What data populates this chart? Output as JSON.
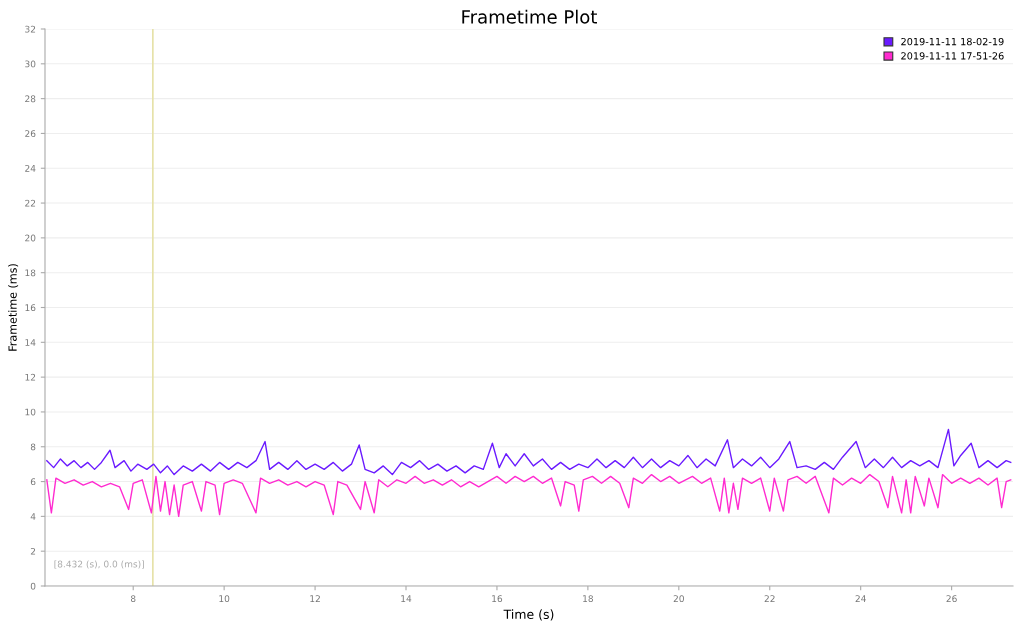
{
  "chart_data": {
    "type": "line",
    "title": "Frametime Plot",
    "xlabel": "Time (s)",
    "ylabel": "Frametime (ms)",
    "xlim": [
      6.06,
      27.35
    ],
    "xticks": [
      8,
      10,
      12,
      14,
      16,
      18,
      20,
      22,
      24,
      26
    ],
    "ylim": [
      0,
      32
    ],
    "yticks": [
      0,
      2,
      4,
      6,
      8,
      10,
      12,
      14,
      16,
      18,
      20,
      22,
      24,
      26,
      28,
      30,
      32
    ],
    "grid": "y",
    "legend": "top right",
    "marker": "none",
    "line_style": "solid",
    "ref_lines": [
      {
        "axis": "x",
        "value": 8.432,
        "color": "#e6e2a8"
      }
    ],
    "annotations": [
      "[8.432 (s), 0.0 (ms)]"
    ],
    "series": [
      {
        "name": "2019-11-11 18-02-19",
        "color": "#6a1aff",
        "x": [
          6.1,
          6.25,
          6.4,
          6.55,
          6.7,
          6.85,
          7.0,
          7.15,
          7.3,
          7.49,
          7.6,
          7.8,
          7.95,
          8.1,
          8.3,
          8.45,
          8.6,
          8.75,
          8.9,
          9.1,
          9.3,
          9.5,
          9.7,
          9.9,
          10.1,
          10.3,
          10.5,
          10.7,
          10.9,
          11.0,
          11.2,
          11.4,
          11.6,
          11.8,
          12.0,
          12.2,
          12.4,
          12.6,
          12.8,
          12.97,
          13.1,
          13.3,
          13.5,
          13.7,
          13.9,
          14.1,
          14.3,
          14.5,
          14.7,
          14.9,
          15.1,
          15.3,
          15.5,
          15.7,
          15.9,
          16.05,
          16.2,
          16.4,
          16.6,
          16.8,
          17.0,
          17.2,
          17.4,
          17.6,
          17.8,
          18.0,
          18.2,
          18.4,
          18.6,
          18.8,
          19.0,
          19.2,
          19.4,
          19.6,
          19.8,
          20.0,
          20.2,
          20.4,
          20.6,
          20.8,
          21.07,
          21.2,
          21.4,
          21.6,
          21.8,
          22.0,
          22.2,
          22.44,
          22.6,
          22.8,
          23.0,
          23.2,
          23.4,
          23.6,
          23.9,
          24.1,
          24.3,
          24.5,
          24.7,
          24.9,
          25.1,
          25.3,
          25.5,
          25.7,
          25.93,
          26.05,
          26.2,
          26.43,
          26.6,
          26.8,
          27.0,
          27.2,
          27.3
        ],
        "values": [
          7.2,
          6.8,
          7.3,
          6.9,
          7.2,
          6.8,
          7.1,
          6.7,
          7.1,
          7.8,
          6.8,
          7.2,
          6.6,
          7.0,
          6.7,
          7.0,
          6.5,
          6.9,
          6.4,
          6.9,
          6.6,
          7.0,
          6.6,
          7.1,
          6.7,
          7.1,
          6.8,
          7.2,
          8.3,
          6.7,
          7.1,
          6.7,
          7.2,
          6.7,
          7.0,
          6.7,
          7.1,
          6.6,
          7.0,
          8.1,
          6.7,
          6.5,
          6.9,
          6.4,
          7.1,
          6.8,
          7.2,
          6.7,
          7.0,
          6.6,
          6.9,
          6.5,
          6.9,
          6.7,
          8.2,
          6.8,
          7.6,
          6.9,
          7.6,
          6.9,
          7.3,
          6.7,
          7.1,
          6.7,
          7.0,
          6.8,
          7.3,
          6.8,
          7.2,
          6.8,
          7.4,
          6.8,
          7.3,
          6.8,
          7.2,
          6.9,
          7.5,
          6.8,
          7.3,
          6.9,
          8.4,
          6.8,
          7.3,
          6.9,
          7.4,
          6.8,
          7.3,
          8.3,
          6.8,
          6.9,
          6.7,
          7.1,
          6.7,
          7.4,
          8.3,
          6.8,
          7.3,
          6.8,
          7.4,
          6.8,
          7.2,
          6.9,
          7.2,
          6.8,
          9.0,
          6.9,
          7.5,
          8.2,
          6.8,
          7.2,
          6.8,
          7.2,
          7.1
        ]
      },
      {
        "name": "2019-11-11 17-51-26",
        "color": "#ff2bd0",
        "x": [
          6.1,
          6.2,
          6.3,
          6.5,
          6.7,
          6.9,
          7.1,
          7.3,
          7.5,
          7.7,
          7.9,
          8.0,
          8.2,
          8.4,
          8.5,
          8.6,
          8.7,
          8.8,
          8.9,
          9.0,
          9.1,
          9.3,
          9.5,
          9.6,
          9.8,
          9.9,
          10.0,
          10.2,
          10.4,
          10.7,
          10.8,
          11.0,
          11.2,
          11.4,
          11.6,
          11.8,
          12.0,
          12.2,
          12.4,
          12.5,
          12.7,
          13.0,
          13.1,
          13.3,
          13.4,
          13.6,
          13.8,
          14.0,
          14.2,
          14.4,
          14.6,
          14.8,
          15.0,
          15.2,
          15.4,
          15.6,
          15.8,
          16.0,
          16.2,
          16.4,
          16.6,
          16.8,
          17.0,
          17.2,
          17.4,
          17.5,
          17.7,
          17.8,
          17.9,
          18.1,
          18.3,
          18.5,
          18.7,
          18.9,
          19.0,
          19.2,
          19.4,
          19.6,
          19.8,
          20.0,
          20.3,
          20.5,
          20.7,
          20.9,
          21.0,
          21.1,
          21.2,
          21.3,
          21.4,
          21.6,
          21.8,
          22.0,
          22.1,
          22.3,
          22.4,
          22.6,
          22.8,
          23.0,
          23.3,
          23.4,
          23.6,
          23.8,
          24.0,
          24.2,
          24.4,
          24.6,
          24.7,
          24.9,
          25.0,
          25.1,
          25.2,
          25.4,
          25.5,
          25.7,
          25.8,
          26.0,
          26.2,
          26.4,
          26.6,
          26.8,
          27.0,
          27.1,
          27.2,
          27.3
        ],
        "values": [
          6.1,
          4.2,
          6.2,
          5.9,
          6.1,
          5.8,
          6.0,
          5.7,
          5.9,
          5.7,
          4.4,
          5.9,
          6.1,
          4.2,
          6.3,
          4.3,
          6.0,
          4.1,
          5.8,
          4.0,
          5.8,
          6.0,
          4.3,
          6.0,
          5.8,
          4.1,
          5.9,
          6.1,
          5.9,
          4.2,
          6.2,
          5.9,
          6.1,
          5.8,
          6.0,
          5.7,
          6.0,
          5.8,
          4.1,
          6.0,
          5.8,
          4.4,
          6.0,
          4.2,
          6.1,
          5.7,
          6.1,
          5.9,
          6.3,
          5.9,
          6.1,
          5.8,
          6.1,
          5.7,
          6.0,
          5.7,
          6.0,
          6.3,
          5.9,
          6.3,
          6.0,
          6.3,
          5.9,
          6.2,
          4.6,
          6.0,
          5.8,
          4.3,
          6.1,
          6.3,
          5.9,
          6.3,
          5.9,
          4.5,
          6.2,
          5.9,
          6.4,
          6.0,
          6.3,
          5.9,
          6.3,
          5.9,
          6.2,
          4.3,
          6.2,
          4.2,
          5.9,
          4.4,
          6.2,
          5.9,
          6.2,
          4.3,
          6.2,
          4.3,
          6.1,
          6.3,
          5.9,
          6.3,
          4.2,
          6.2,
          5.8,
          6.2,
          5.9,
          6.4,
          6.0,
          4.5,
          6.3,
          4.2,
          6.1,
          4.2,
          6.3,
          4.6,
          6.2,
          4.5,
          6.4,
          5.9,
          6.2,
          5.9,
          6.2,
          5.8,
          6.2,
          4.5,
          6.0,
          6.1
        ]
      }
    ]
  }
}
